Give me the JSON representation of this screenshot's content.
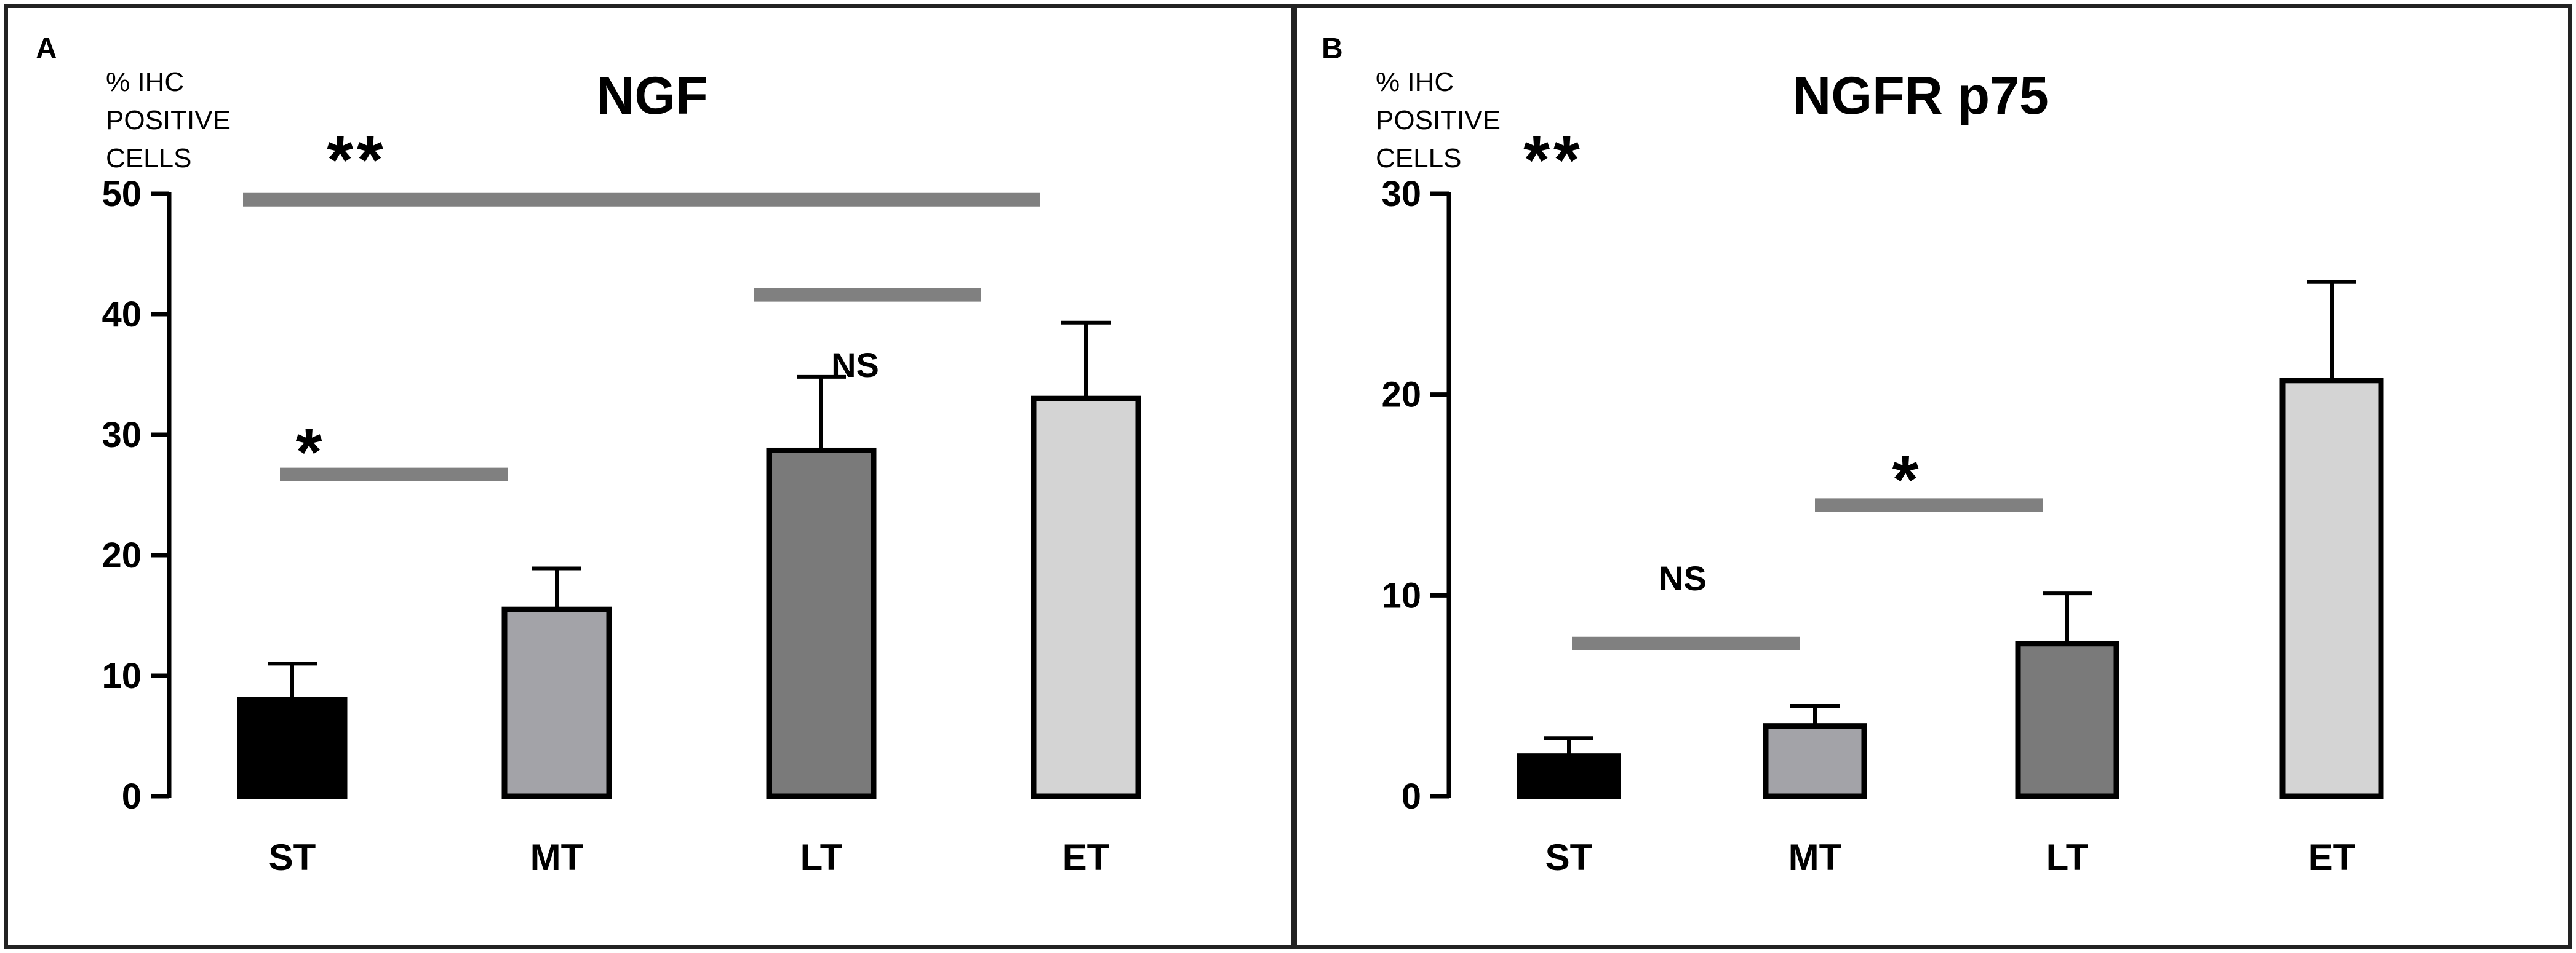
{
  "chart_data": [
    {
      "type": "bar",
      "panel_label": "A",
      "title": "NGF",
      "ylabel_lines": [
        "% IHC",
        "POSITIVE",
        "CELLS"
      ],
      "categories": [
        "ST",
        "MT",
        "LT",
        "ET"
      ],
      "values": [
        8,
        15.5,
        28.7,
        33
      ],
      "errors": [
        3,
        3.4,
        6.1,
        6.3
      ],
      "bar_colors": [
        "#000000",
        "#a3a3a8",
        "#7a7a7a",
        "#d4d4d4"
      ],
      "ylim": [
        0,
        50
      ],
      "yticks": [
        "0",
        "10",
        "20",
        "30",
        "40",
        "50"
      ],
      "annotations": [
        {
          "text": "**",
          "from": "ST",
          "to": "ET",
          "level": 49.5
        },
        {
          "text": "*",
          "from": "ST",
          "to": "MT",
          "level": 26.7
        },
        {
          "text": "NS",
          "from": "LT",
          "to": "ET",
          "level": 41.6
        }
      ]
    },
    {
      "type": "bar",
      "panel_label": "B",
      "title": "NGFR p75",
      "ylabel_lines": [
        "% IHC",
        "POSITIVE",
        "CELLS"
      ],
      "categories": [
        "ST",
        "MT",
        "LT",
        "ET"
      ],
      "values": [
        2,
        3.5,
        7.6,
        20.7
      ],
      "errors": [
        0.9,
        1,
        2.5,
        4.9
      ],
      "bar_colors": [
        "#000000",
        "#a3a3a8",
        "#7a7a7a",
        "#d4d4d4"
      ],
      "ylim": [
        0,
        30
      ],
      "yticks": [
        "0",
        "10",
        "20",
        "30"
      ],
      "annotations": [
        {
          "text": "**",
          "from": null,
          "to": null,
          "level": null
        },
        {
          "text": "NS",
          "from": "ST",
          "to": "MT",
          "level": 7.6
        },
        {
          "text": "*",
          "from": "MT",
          "to": "LT",
          "level": 14.5
        }
      ]
    }
  ]
}
